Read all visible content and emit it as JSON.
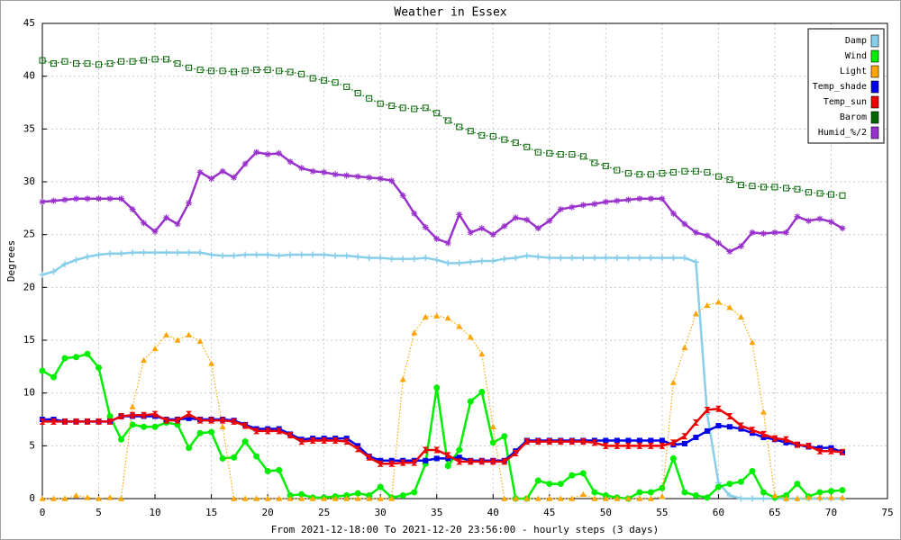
{
  "chart_data": {
    "type": "line",
    "title": "Weather in Essex",
    "y_label": "Degrees",
    "x_label": "From 2021-12-18:00 To 2021-12-20 23:56:00 - hourly steps (3 days)",
    "xlim": [
      0,
      75
    ],
    "ylim": [
      0,
      45
    ],
    "xticks": [
      0,
      5,
      10,
      15,
      20,
      25,
      30,
      35,
      40,
      45,
      50,
      55,
      60,
      65,
      70,
      75
    ],
    "yticks": [
      0,
      5,
      10,
      15,
      20,
      25,
      30,
      35,
      40,
      45
    ],
    "grid": true,
    "legend": "top-right",
    "x": [
      0,
      1,
      2,
      3,
      4,
      5,
      6,
      7,
      8,
      9,
      10,
      11,
      12,
      13,
      14,
      15,
      16,
      17,
      18,
      19,
      20,
      21,
      22,
      23,
      24,
      25,
      26,
      27,
      28,
      29,
      30,
      31,
      32,
      33,
      34,
      35,
      36,
      37,
      38,
      39,
      40,
      41,
      42,
      43,
      44,
      45,
      46,
      47,
      48,
      49,
      50,
      51,
      52,
      53,
      54,
      55,
      56,
      57,
      58,
      59,
      60,
      61,
      62,
      63,
      64,
      65,
      66,
      67,
      68,
      69,
      70,
      71
    ],
    "series": [
      {
        "name": "Damp",
        "color": "#87ceeb",
        "marker": "plus",
        "dash": "solid",
        "values": [
          21.2,
          21.5,
          22.2,
          22.6,
          22.9,
          23.1,
          23.2,
          23.2,
          23.3,
          23.3,
          23.3,
          23.3,
          23.3,
          23.3,
          23.3,
          23.1,
          23.0,
          23.0,
          23.1,
          23.1,
          23.1,
          23.0,
          23.1,
          23.1,
          23.1,
          23.1,
          23.0,
          23.0,
          22.9,
          22.8,
          22.8,
          22.7,
          22.7,
          22.7,
          22.8,
          22.6,
          22.3,
          22.3,
          22.4,
          22.5,
          22.5,
          22.7,
          22.8,
          23.0,
          22.9,
          22.8,
          22.8,
          22.8,
          22.8,
          22.8,
          22.8,
          22.8,
          22.8,
          22.8,
          22.8,
          22.8,
          22.8,
          22.8,
          22.4,
          8.0,
          1.5,
          0.3,
          0,
          0,
          0,
          0,
          0,
          0,
          0,
          0,
          0,
          0
        ]
      },
      {
        "name": "Wind",
        "color": "#00ee00",
        "marker": "circle",
        "dash": "solid",
        "values": [
          12.1,
          11.5,
          13.3,
          13.4,
          13.7,
          12.4,
          7.8,
          5.6,
          7.0,
          6.8,
          6.8,
          7.2,
          7.0,
          4.8,
          6.2,
          6.3,
          3.8,
          3.9,
          5.4,
          4.0,
          2.6,
          2.7,
          0.3,
          0.4,
          0.1,
          0.1,
          0.2,
          0.3,
          0.5,
          0.3,
          1.1,
          0.1,
          0.3,
          0.6,
          3.3,
          10.5,
          3.1,
          4.6,
          9.2,
          10.1,
          5.3,
          5.9,
          0,
          0,
          1.7,
          1.4,
          1.4,
          2.2,
          2.4,
          0.6,
          0.3,
          0.1,
          0,
          0.6,
          0.6,
          1.0,
          3.8,
          0.6,
          0.3,
          0.1,
          1.1,
          1.4,
          1.6,
          2.6,
          0.6,
          0.1,
          0.3,
          1.4,
          0.2,
          0.6,
          0.7,
          0.8
        ]
      },
      {
        "name": "Light",
        "color": "#ffa500",
        "marker": "triangle",
        "dash": "dotted",
        "values": [
          0,
          0,
          0,
          0.3,
          0.1,
          0,
          0.1,
          0,
          8.7,
          13.1,
          14.2,
          15.5,
          15.0,
          15.5,
          14.9,
          12.8,
          6.8,
          0,
          0,
          0,
          0,
          0,
          0,
          0,
          0,
          0,
          0,
          0,
          0,
          0,
          0,
          0,
          11.3,
          15.7,
          17.2,
          17.3,
          17.1,
          16.3,
          15.3,
          13.7,
          6.8,
          0,
          0,
          0,
          0,
          0,
          0,
          0,
          0.4,
          0,
          0,
          0,
          0,
          0,
          0,
          0.2,
          11.0,
          14.3,
          17.5,
          18.3,
          18.6,
          18.1,
          17.2,
          14.8,
          8.2,
          0.3,
          0,
          0,
          0.1,
          0.1,
          0.1,
          0.1
        ]
      },
      {
        "name": "Temp_shade",
        "color": "#0000ee",
        "marker": "square",
        "dash": "solid",
        "values": [
          7.5,
          7.5,
          7.3,
          7.3,
          7.3,
          7.3,
          7.3,
          7.8,
          7.8,
          7.8,
          7.8,
          7.5,
          7.5,
          7.6,
          7.5,
          7.5,
          7.5,
          7.4,
          7.0,
          6.6,
          6.6,
          6.6,
          6.1,
          5.6,
          5.7,
          5.7,
          5.7,
          5.7,
          5.0,
          4.0,
          3.6,
          3.6,
          3.6,
          3.6,
          3.6,
          3.8,
          3.8,
          3.9,
          3.6,
          3.6,
          3.6,
          3.6,
          4.5,
          5.5,
          5.5,
          5.5,
          5.5,
          5.5,
          5.5,
          5.5,
          5.5,
          5.5,
          5.5,
          5.5,
          5.5,
          5.5,
          5.1,
          5.2,
          5.8,
          6.4,
          6.9,
          6.8,
          6.6,
          6.2,
          5.8,
          5.6,
          5.3,
          5.1,
          4.9,
          4.8,
          4.8,
          4.4
        ]
      },
      {
        "name": "Temp_sun",
        "color": "#ee0000",
        "marker": "bowtie",
        "dash": "solid",
        "values": [
          7.3,
          7.3,
          7.3,
          7.3,
          7.3,
          7.3,
          7.3,
          7.8,
          7.9,
          7.9,
          8.0,
          7.4,
          7.4,
          8.0,
          7.4,
          7.4,
          7.4,
          7.3,
          6.9,
          6.4,
          6.4,
          6.4,
          6.0,
          5.4,
          5.5,
          5.5,
          5.5,
          5.4,
          4.7,
          3.9,
          3.3,
          3.3,
          3.4,
          3.4,
          4.6,
          4.6,
          4.1,
          3.5,
          3.5,
          3.5,
          3.5,
          3.5,
          4.3,
          5.4,
          5.4,
          5.4,
          5.4,
          5.4,
          5.4,
          5.3,
          5.0,
          5.0,
          5.0,
          5.0,
          5.0,
          5.0,
          5.3,
          5.9,
          7.2,
          8.4,
          8.5,
          7.8,
          6.9,
          6.5,
          6.1,
          5.7,
          5.6,
          5.1,
          5.0,
          4.5,
          4.5,
          4.4
        ]
      },
      {
        "name": "Barom",
        "color": "#006400",
        "marker": "opensquare",
        "dash": "dotted",
        "values": [
          41.5,
          41.2,
          41.4,
          41.2,
          41.2,
          41.1,
          41.2,
          41.4,
          41.4,
          41.5,
          41.6,
          41.6,
          41.2,
          40.8,
          40.6,
          40.5,
          40.5,
          40.4,
          40.5,
          40.6,
          40.6,
          40.5,
          40.4,
          40.2,
          39.8,
          39.6,
          39.4,
          39.0,
          38.4,
          37.9,
          37.4,
          37.2,
          37.0,
          36.9,
          37.0,
          36.5,
          35.8,
          35.2,
          34.8,
          34.4,
          34.3,
          34.0,
          33.7,
          33.3,
          32.8,
          32.7,
          32.6,
          32.6,
          32.4,
          31.8,
          31.5,
          31.1,
          30.8,
          30.7,
          30.7,
          30.8,
          30.9,
          31.0,
          31.0,
          30.9,
          30.5,
          30.2,
          29.7,
          29.6,
          29.5,
          29.5,
          29.4,
          29.3,
          29.0,
          28.9,
          28.8,
          28.7
        ]
      },
      {
        "name": "Humid_%/2",
        "color": "#9932cc",
        "marker": "star",
        "dash": "solid",
        "values": [
          28.1,
          28.2,
          28.3,
          28.4,
          28.4,
          28.4,
          28.4,
          28.4,
          27.4,
          26.1,
          25.3,
          26.6,
          26.0,
          28.0,
          30.9,
          30.3,
          31.0,
          30.4,
          31.7,
          32.8,
          32.6,
          32.7,
          31.9,
          31.3,
          31.0,
          30.9,
          30.7,
          30.6,
          30.5,
          30.4,
          30.3,
          30.1,
          28.7,
          27.0,
          25.7,
          24.6,
          24.2,
          26.9,
          25.2,
          25.6,
          25.0,
          25.8,
          26.6,
          26.4,
          25.6,
          26.3,
          27.4,
          27.6,
          27.8,
          27.9,
          28.1,
          28.2,
          28.3,
          28.4,
          28.4,
          28.4,
          27.0,
          26.0,
          25.2,
          24.9,
          24.2,
          23.4,
          23.9,
          25.2,
          25.1,
          25.2,
          25.2,
          26.7,
          26.3,
          26.5,
          26.2,
          25.6
        ]
      }
    ]
  }
}
